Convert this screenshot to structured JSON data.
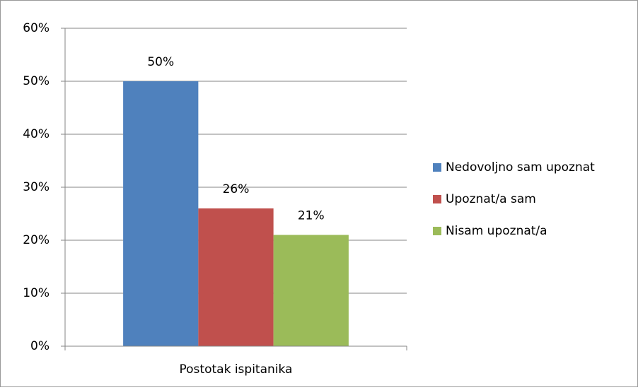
{
  "chart_data": {
    "type": "bar",
    "categories": [
      "Postotak ispitanika"
    ],
    "series": [
      {
        "name": "Nedovoljno sam upoznat",
        "color": "#4f81bd",
        "values": [
          50
        ],
        "value_labels": [
          "50%"
        ]
      },
      {
        "name": "Upoznat/a sam",
        "color": "#c0504d",
        "values": [
          26
        ],
        "value_labels": [
          "26%"
        ]
      },
      {
        "name": "Nisam upoznat/a",
        "color": "#9bbb59",
        "values": [
          21
        ],
        "value_labels": [
          "21%"
        ]
      }
    ],
    "ylim": [
      0,
      60
    ],
    "yticks": [
      {
        "value": 0,
        "label": "0%"
      },
      {
        "value": 10,
        "label": "10%"
      },
      {
        "value": 20,
        "label": "20%"
      },
      {
        "value": 30,
        "label": "30%"
      },
      {
        "value": 40,
        "label": "40%"
      },
      {
        "value": 50,
        "label": "50%"
      },
      {
        "value": 60,
        "label": "60%"
      }
    ],
    "grid": true,
    "legend": "right"
  }
}
